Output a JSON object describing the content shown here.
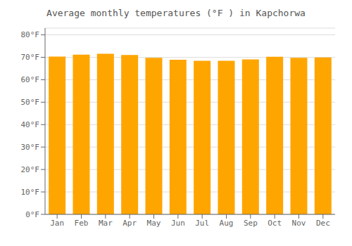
{
  "chart_data": {
    "type": "bar",
    "title": "Average monthly temperatures (°F ) in Kapchorwa",
    "categories": [
      "Jan",
      "Feb",
      "Mar",
      "Apr",
      "May",
      "Jun",
      "Jul",
      "Aug",
      "Sep",
      "Oct",
      "Nov",
      "Dec"
    ],
    "values": [
      70.3,
      71.2,
      71.6,
      71.0,
      69.8,
      68.9,
      68.4,
      68.4,
      69.1,
      70.2,
      69.8,
      69.9
    ],
    "color": "#FFA500",
    "ylim": [
      0,
      83
    ],
    "yticks": [
      {
        "value": 0,
        "label": "0°F"
      },
      {
        "value": 10,
        "label": "10°F"
      },
      {
        "value": 20,
        "label": "20°F"
      },
      {
        "value": 30,
        "label": "30°F"
      },
      {
        "value": 40,
        "label": "40°F"
      },
      {
        "value": 50,
        "label": "50°F"
      },
      {
        "value": 60,
        "label": "60°F"
      },
      {
        "value": 70,
        "label": "70°F"
      },
      {
        "value": 80,
        "label": "80°F"
      }
    ],
    "grid": true
  }
}
